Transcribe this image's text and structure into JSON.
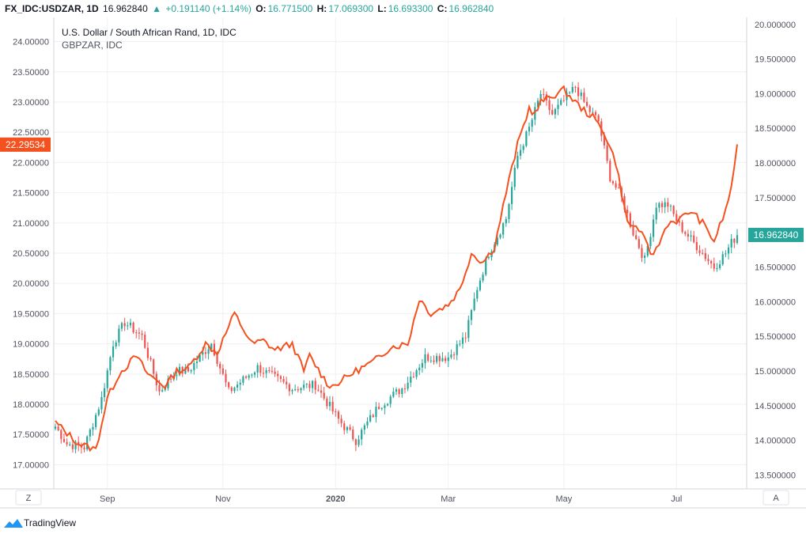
{
  "header": {
    "symbol": "FX_IDC:USDZAR, 1D",
    "last": "16.962840",
    "change": "+0.191140 (+1.14%)",
    "o_label": "O:",
    "o_value": "16.771500",
    "h_label": "H:",
    "h_value": "17.069300",
    "l_label": "L:",
    "l_value": "16.693300",
    "c_label": "C:",
    "c_value": "16.962840"
  },
  "legend": {
    "main": "U.S. Dollar / South African Rand, 1D, IDC",
    "compare": "GBPZAR, IDC"
  },
  "footer": {
    "brand": "TradingView"
  },
  "buttons": {
    "left": "Z",
    "right": "A"
  },
  "colors": {
    "up": "#26a69a",
    "down": "#ef5350",
    "compare": "#f4511e",
    "grid": "#eef0f3",
    "axis_text": "#50535e"
  },
  "chart_data": {
    "type": "candlestick",
    "x_tick_labels": [
      "Sep",
      "Nov",
      "2020",
      "Mar",
      "May",
      "Jul"
    ],
    "x_tick_index": [
      18,
      58,
      97,
      136,
      176,
      215
    ],
    "left_axis": {
      "series": "GBPZAR",
      "ylim": [
        16.6,
        24.4
      ],
      "ticks": [
        "17.00000",
        "17.50000",
        "18.00000",
        "18.50000",
        "19.00000",
        "19.50000",
        "20.00000",
        "20.50000",
        "21.00000",
        "21.50000",
        "22.00000",
        "22.50000",
        "23.00000",
        "23.50000",
        "24.00000"
      ],
      "last_label": "22.29534"
    },
    "right_axis": {
      "series": "USDZAR",
      "ylim": [
        13.3,
        20.1
      ],
      "ticks": [
        "13.500000",
        "14.000000",
        "14.500000",
        "15.000000",
        "15.500000",
        "16.000000",
        "16.500000",
        "17.000000",
        "17.500000",
        "18.000000",
        "18.500000",
        "19.000000",
        "19.500000",
        "20.000000"
      ],
      "last_label": "16.962840"
    },
    "usdzar_anchors": [
      [
        0,
        14.2
      ],
      [
        4,
        13.95
      ],
      [
        10,
        13.9
      ],
      [
        16,
        14.6
      ],
      [
        20,
        15.4
      ],
      [
        24,
        15.7
      ],
      [
        30,
        15.5
      ],
      [
        36,
        14.7
      ],
      [
        42,
        15.0
      ],
      [
        46,
        15.0
      ],
      [
        54,
        15.4
      ],
      [
        60,
        14.7
      ],
      [
        70,
        15.05
      ],
      [
        76,
        14.9
      ],
      [
        82,
        14.75
      ],
      [
        90,
        14.8
      ],
      [
        98,
        14.3
      ],
      [
        104,
        14.0
      ],
      [
        112,
        14.5
      ],
      [
        120,
        14.75
      ],
      [
        128,
        15.2
      ],
      [
        136,
        15.2
      ],
      [
        142,
        15.5
      ],
      [
        146,
        16.2
      ],
      [
        150,
        16.7
      ],
      [
        156,
        17.2
      ],
      [
        160,
        18.1
      ],
      [
        164,
        18.5
      ],
      [
        168,
        19.0
      ],
      [
        172,
        18.7
      ],
      [
        176,
        18.9
      ],
      [
        180,
        19.1
      ],
      [
        184,
        18.8
      ],
      [
        188,
        18.6
      ],
      [
        192,
        17.8
      ],
      [
        196,
        17.5
      ],
      [
        200,
        17.0
      ],
      [
        204,
        16.6
      ],
      [
        208,
        17.4
      ],
      [
        212,
        17.4
      ],
      [
        216,
        17.1
      ],
      [
        220,
        16.9
      ],
      [
        224,
        16.7
      ],
      [
        228,
        16.5
      ],
      [
        232,
        16.7
      ],
      [
        234,
        16.85
      ],
      [
        236,
        16.96
      ]
    ],
    "gbpzar_anchors": [
      [
        0,
        17.7
      ],
      [
        8,
        17.35
      ],
      [
        14,
        17.25
      ],
      [
        18,
        18.1
      ],
      [
        22,
        18.5
      ],
      [
        28,
        18.8
      ],
      [
        32,
        18.5
      ],
      [
        38,
        18.3
      ],
      [
        42,
        18.55
      ],
      [
        46,
        18.6
      ],
      [
        52,
        19.0
      ],
      [
        56,
        18.85
      ],
      [
        62,
        19.5
      ],
      [
        68,
        19.0
      ],
      [
        72,
        19.05
      ],
      [
        76,
        18.9
      ],
      [
        82,
        19.0
      ],
      [
        86,
        18.55
      ],
      [
        88,
        18.8
      ],
      [
        94,
        18.35
      ],
      [
        96,
        18.3
      ],
      [
        104,
        18.55
      ],
      [
        110,
        18.7
      ],
      [
        116,
        18.95
      ],
      [
        122,
        19.0
      ],
      [
        126,
        19.75
      ],
      [
        130,
        19.5
      ],
      [
        136,
        19.65
      ],
      [
        140,
        19.9
      ],
      [
        144,
        20.5
      ],
      [
        148,
        20.35
      ],
      [
        152,
        20.6
      ],
      [
        156,
        21.5
      ],
      [
        160,
        22.3
      ],
      [
        164,
        22.9
      ],
      [
        166,
        22.8
      ],
      [
        168,
        23.0
      ],
      [
        172,
        23.1
      ],
      [
        176,
        23.2
      ],
      [
        178,
        23.1
      ],
      [
        182,
        22.9
      ],
      [
        186,
        22.75
      ],
      [
        190,
        22.5
      ],
      [
        194,
        22.0
      ],
      [
        198,
        21.0
      ],
      [
        202,
        20.9
      ],
      [
        206,
        20.5
      ],
      [
        208,
        20.55
      ],
      [
        212,
        21.0
      ],
      [
        216,
        21.05
      ],
      [
        220,
        21.2
      ],
      [
        224,
        21.0
      ],
      [
        228,
        20.7
      ],
      [
        232,
        21.2
      ],
      [
        234,
        21.6
      ],
      [
        236,
        22.3
      ]
    ]
  }
}
